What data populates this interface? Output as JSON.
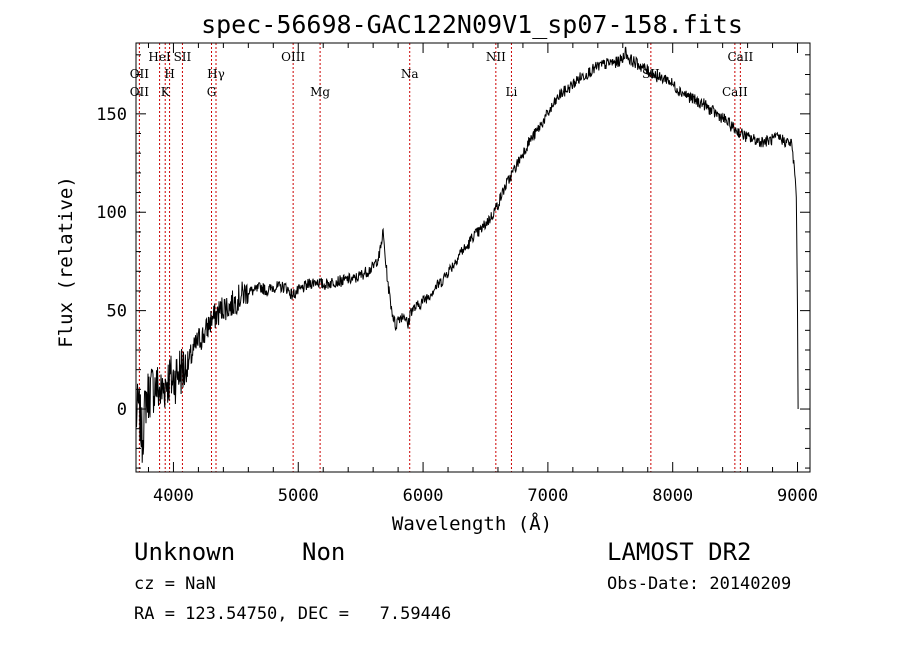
{
  "chart_data": {
    "type": "line",
    "title": "spec-56698-GAC122N09V1_sp07-158.fits",
    "xlabel": "Wavelength (Å)",
    "ylabel": "Flux (relative)",
    "xlim": [
      3700,
      9100
    ],
    "ylim": [
      -32,
      186
    ],
    "xticks": [
      4000,
      5000,
      6000,
      7000,
      8000,
      9000
    ],
    "xtick_labels": [
      "4000",
      "5000",
      "6000",
      "7000",
      "8000",
      "9000"
    ],
    "yticks": [
      0,
      50,
      100,
      150
    ],
    "ytick_labels": [
      "0",
      "50",
      "100",
      "150"
    ],
    "grid": false,
    "line_color": "#000000",
    "marker_color": "#cc0000",
    "series": [
      {
        "x": [
          3700,
          3720,
          3750,
          3780,
          3820,
          3860,
          3900,
          3950,
          4000,
          4050,
          4100,
          4150,
          4200,
          4250,
          4300,
          4350,
          4400,
          4450,
          4500,
          4550,
          4600,
          4650,
          4700,
          4750,
          4800,
          4850,
          4900,
          4950,
          5000,
          5050,
          5100,
          5150,
          5200,
          5250,
          5300,
          5350,
          5400,
          5450,
          5500,
          5550,
          5600,
          5650,
          5680,
          5700,
          5720,
          5750,
          5780,
          5800,
          5850,
          5880,
          5900,
          5950,
          6000,
          6050,
          6100,
          6150,
          6200,
          6250,
          6300,
          6350,
          6400,
          6450,
          6500,
          6550,
          6580,
          6600,
          6650,
          6700,
          6750,
          6800,
          6850,
          6900,
          6950,
          7000,
          7050,
          7100,
          7150,
          7200,
          7250,
          7300,
          7350,
          7400,
          7450,
          7500,
          7550,
          7600,
          7620,
          7650,
          7700,
          7750,
          7800,
          7850,
          7900,
          7950,
          8000,
          8050,
          8100,
          8150,
          8200,
          8250,
          8300,
          8350,
          8400,
          8450,
          8500,
          8550,
          8600,
          8650,
          8700,
          8750,
          8800,
          8850,
          8900,
          8950,
          8970,
          8990,
          9000,
          9005
        ],
        "y": [
          -5,
          2,
          -15,
          5,
          10,
          12,
          8,
          15,
          15,
          20,
          20,
          28,
          35,
          38,
          45,
          48,
          52,
          52,
          55,
          58,
          60,
          60,
          62,
          60,
          62,
          62,
          62,
          58,
          60,
          62,
          64,
          65,
          63,
          64,
          65,
          65,
          66,
          66,
          68,
          70,
          72,
          78,
          90,
          75,
          63,
          50,
          42,
          46,
          48,
          42,
          50,
          52,
          55,
          58,
          62,
          65,
          70,
          74,
          80,
          82,
          88,
          90,
          94,
          98,
          102,
          104,
          112,
          118,
          124,
          130,
          136,
          140,
          145,
          150,
          155,
          160,
          162,
          165,
          168,
          170,
          172,
          174,
          175,
          176,
          176,
          178,
          182,
          178,
          176,
          174,
          172,
          170,
          168,
          168,
          165,
          162,
          160,
          158,
          156,
          155,
          152,
          150,
          148,
          145,
          142,
          140,
          138,
          137,
          136,
          136,
          137,
          138,
          136,
          135,
          125,
          110,
          50,
          0
        ]
      }
    ],
    "lines": [
      {
        "x": 3727,
        "label": "OII",
        "row": 2
      },
      {
        "x": 3727,
        "label": "OII",
        "row": 3
      },
      {
        "x": 3889,
        "label": "HeI",
        "row": 1
      },
      {
        "x": 3934,
        "label": "K",
        "row": 3
      },
      {
        "x": 3969,
        "label": "H",
        "row": 2
      },
      {
        "x": 4072,
        "label": "SII",
        "row": 1
      },
      {
        "x": 4305,
        "label": "G",
        "row": 3
      },
      {
        "x": 4341,
        "label": "Hγ",
        "row": 2
      },
      {
        "x": 4959,
        "label": "OIII",
        "row": 1
      },
      {
        "x": 5175,
        "label": "Mg",
        "row": 3
      },
      {
        "x": 5893,
        "label": "Na",
        "row": 2
      },
      {
        "x": 6583,
        "label": "NII",
        "row": 1
      },
      {
        "x": 6708,
        "label": "Li",
        "row": 3
      },
      {
        "x": 7825,
        "label": "SII",
        "row": 2
      },
      {
        "x": 8498,
        "label": "CaII",
        "row": 3
      },
      {
        "x": 8542,
        "label": "CaII",
        "row": 1
      }
    ]
  },
  "info": {
    "class_name": "Unknown",
    "subclass": "Non",
    "survey": "LAMOST DR2",
    "cz": "cz = NaN",
    "obs_date": "Obs-Date: 20140209",
    "coords": "RA = 123.54750, DEC =   7.59446"
  }
}
